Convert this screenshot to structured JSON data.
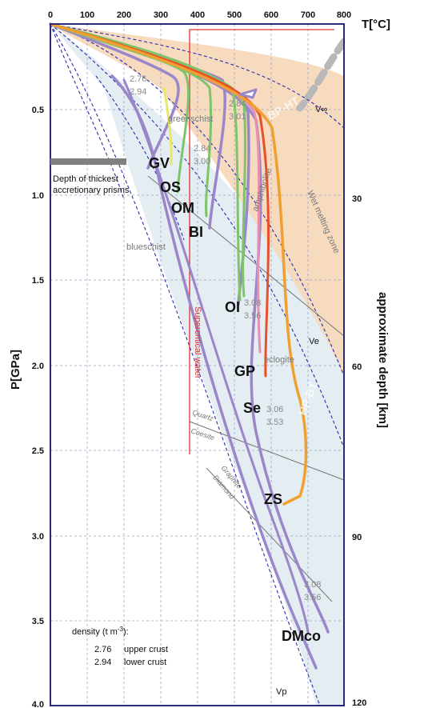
{
  "axes": {
    "temperature_title": "T[°C]",
    "pressure_title": "P[GPa]",
    "depth_title": "approximate depth [km]",
    "temperature_ticks": [
      "0",
      "100",
      "200",
      "300",
      "400",
      "500",
      "600",
      "700",
      "800"
    ],
    "pressure_ticks": [
      "0.5",
      "1.0",
      "1.5",
      "2.0",
      "2.5",
      "3.0",
      "3.5",
      "4.0"
    ],
    "depth_ticks": [
      "30",
      "60",
      "90",
      "120"
    ]
  },
  "labels": {
    "prism_line1": "Depth of thickest",
    "prism_line2": "accretionary prisms",
    "greenschist": "greenschist",
    "blueschist": "blueschist",
    "amphibolite": "amphibolite",
    "eclogite": "eclogite",
    "wet_melting": "Wet melting zone",
    "bp_ht": "BP-HT",
    "hp_bt": "HP-BT",
    "supercritical": "Supercritical water",
    "quartz": "Quartz",
    "coesite": "Coesite",
    "graphite": "Graphite",
    "diamond": "Diamond",
    "v_inf": "V∞",
    "ve": "Ve",
    "vp": "Vp"
  },
  "rocks": [
    "GV",
    "OS",
    "OM",
    "BI",
    "OI",
    "GP",
    "Se",
    "ZS",
    "DMco"
  ],
  "densities": [
    {
      "upper": "2.76",
      "lower": "2.94"
    },
    {
      "upper": "2.84",
      "lower": "3.01"
    },
    {
      "upper": "2.84",
      "lower": "3.00"
    },
    {
      "upper": "3.08",
      "lower": "3.56"
    },
    {
      "upper": "3.06",
      "lower": "3.53"
    },
    {
      "upper": "3.08",
      "lower": "3.56"
    }
  ],
  "legend": {
    "title": "density (t m",
    "title_sup": "-3",
    "title_end": "):",
    "upper_val": "2.76",
    "upper_label": "upper crust",
    "lower_val": "2.94",
    "lower_label": "lower crust"
  },
  "colors": {
    "frame": "#2a2a7a",
    "grid": "#9aa0d0",
    "purple": "#9a86c8",
    "green": "#7dc46b",
    "orange": "#f0a030",
    "red": "#e8502a",
    "yellow": "#e8e86a",
    "pink": "#e890b0",
    "peach": "#f5d7b8",
    "lightblue": "#e4edf2",
    "supercritical": "#e03030"
  }
}
